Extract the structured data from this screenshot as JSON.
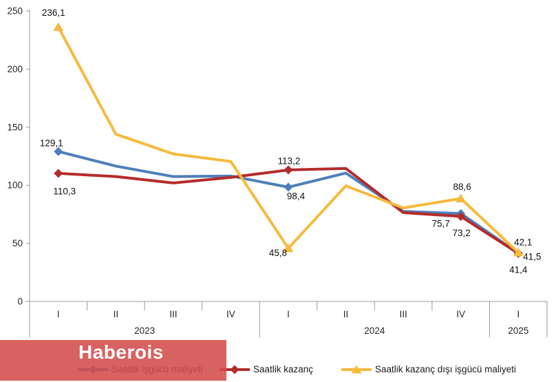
{
  "watermark": {
    "text": "Haberois",
    "box_color": "#d95f5f"
  },
  "chart_data": {
    "type": "line",
    "title": "",
    "xlabel": "",
    "ylabel": "",
    "ylim": [
      0,
      250
    ],
    "yticks": [
      0,
      50,
      100,
      150,
      200,
      250
    ],
    "ytick_labels": [
      "0",
      "50",
      "100",
      "150",
      "200",
      "250"
    ],
    "grid": false,
    "legend_position": "bottom",
    "x_groups": [
      {
        "year": "2023",
        "quarters": [
          "I",
          "II",
          "III",
          "IV"
        ]
      },
      {
        "year": "2024",
        "quarters": [
          "I",
          "II",
          "III",
          "IV"
        ]
      },
      {
        "year": "2025",
        "quarters": [
          "I"
        ]
      }
    ],
    "categories": [
      "2023-I",
      "2023-II",
      "2023-III",
      "2023-IV",
      "2024-I",
      "2024-II",
      "2024-III",
      "2024-IV",
      "2025-I"
    ],
    "series": [
      {
        "name": "Saatlik işgücü maliyeti",
        "color": "#4f7fba",
        "marker": "diamond",
        "values": [
          129.1,
          116.5,
          107.5,
          108.0,
          98.4,
          110.5,
          77.5,
          75.7,
          41.5
        ],
        "point_labels": {
          "0": "129,1",
          "4": "98,4",
          "7": "75,7",
          "8": "41,5"
        }
      },
      {
        "name": "Saatlik kazanç",
        "color": "#b52b2b",
        "marker": "diamond",
        "values": [
          110.3,
          107.5,
          102.0,
          106.8,
          113.2,
          114.5,
          76.5,
          73.2,
          41.4
        ],
        "point_labels": {
          "0": "110,3",
          "4": "113,2",
          "7": "73,2",
          "8": "41,4"
        }
      },
      {
        "name": "Saatlik kazanç dışı işgücü maliyeti",
        "color": "#f7ba3d",
        "marker": "triangle",
        "values": [
          236.1,
          144.0,
          127.0,
          120.5,
          45.8,
          99.5,
          80.5,
          88.6,
          42.1
        ],
        "point_labels": {
          "0": "236,1",
          "4": "45,8",
          "7": "88,6",
          "8": "42,1"
        }
      }
    ]
  }
}
